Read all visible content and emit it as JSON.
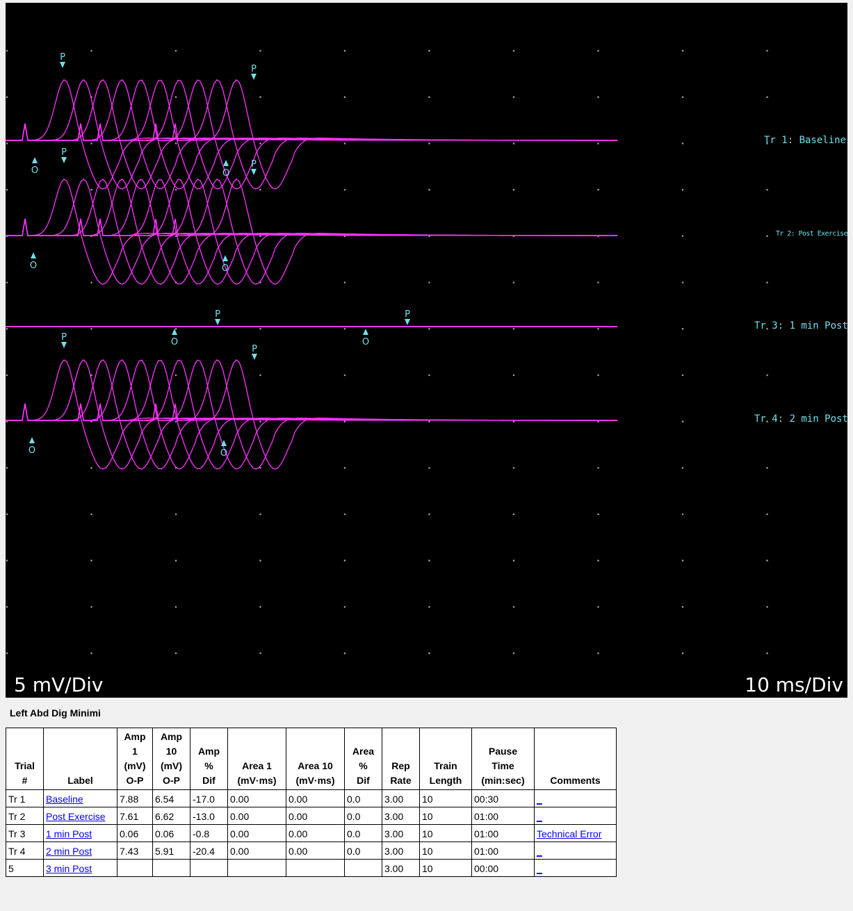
{
  "scope": {
    "vertical_scale": "5 mV/Div",
    "horizontal_scale": "10 ms/Div",
    "colors": {
      "background": "#000000",
      "trace": "#ff33ff",
      "marker": "#6fe0e8",
      "grid": "#9a9a9a"
    },
    "traces": [
      {
        "id": "tr1",
        "label": "Tr 1: Baseline",
        "onset_marker": "O",
        "peak_marker": "P"
      },
      {
        "id": "tr2",
        "label": "Tr 2: Post Exercise",
        "onset_marker": "O",
        "peak_marker": "P"
      },
      {
        "id": "tr3",
        "label": "Tr 3: 1 min Post",
        "onset_marker": "O",
        "peak_marker": "P"
      },
      {
        "id": "tr4",
        "label": "Tr 4: 2 min Post",
        "onset_marker": "O",
        "peak_marker": "P"
      }
    ]
  },
  "site": "Left Abd Dig Minimi",
  "table": {
    "headers": [
      [
        "Trial",
        "#"
      ],
      [
        "Label"
      ],
      [
        "Amp",
        "1",
        "(mV)",
        "O-P"
      ],
      [
        "Amp",
        "10",
        "(mV)",
        "O-P"
      ],
      [
        "Amp",
        "%",
        "Dif"
      ],
      [
        "Area 1",
        "(mV·ms)"
      ],
      [
        "Area 10",
        "(mV·ms)"
      ],
      [
        "Area",
        "%",
        "Dif"
      ],
      [
        "Rep",
        "Rate"
      ],
      [
        "Train",
        "Length"
      ],
      [
        "Pause",
        "Time",
        "(min:sec)"
      ],
      [
        "Comments"
      ]
    ],
    "rows": [
      {
        "trial": "Tr 1",
        "label": "Baseline",
        "amp1": "7.88",
        "amp10": "6.54",
        "amp_dif": "-17.0",
        "area1": "0.00",
        "area10": "0.00",
        "area_dif": "0.0",
        "rep_rate": "3.00",
        "train_length": "10",
        "pause_time": "00:30",
        "comment": "_"
      },
      {
        "trial": "Tr 2",
        "label": "Post Exercise",
        "amp1": "7.61",
        "amp10": "6.62",
        "amp_dif": "-13.0",
        "area1": "0.00",
        "area10": "0.00",
        "area_dif": "0.0",
        "rep_rate": "3.00",
        "train_length": "10",
        "pause_time": "01:00",
        "comment": "_"
      },
      {
        "trial": "Tr 3",
        "label": "1 min Post",
        "amp1": "0.06",
        "amp10": "0.06",
        "amp_dif": "-0.8",
        "area1": "0.00",
        "area10": "0.00",
        "area_dif": "0.0",
        "rep_rate": "3.00",
        "train_length": "10",
        "pause_time": "01:00",
        "comment": "Technical Error"
      },
      {
        "trial": "Tr 4",
        "label": "2 min Post",
        "amp1": "7.43",
        "amp10": "5.91",
        "amp_dif": "-20.4",
        "area1": "0.00",
        "area10": "0.00",
        "area_dif": "0.0",
        "rep_rate": "3.00",
        "train_length": "10",
        "pause_time": "01:00",
        "comment": "_"
      },
      {
        "trial": "5",
        "label": "3 min Post",
        "amp1": "",
        "amp10": "",
        "amp_dif": "",
        "area1": "",
        "area10": "",
        "area_dif": "",
        "rep_rate": "3.00",
        "train_length": "10",
        "pause_time": "00:00",
        "comment": "_"
      }
    ]
  }
}
